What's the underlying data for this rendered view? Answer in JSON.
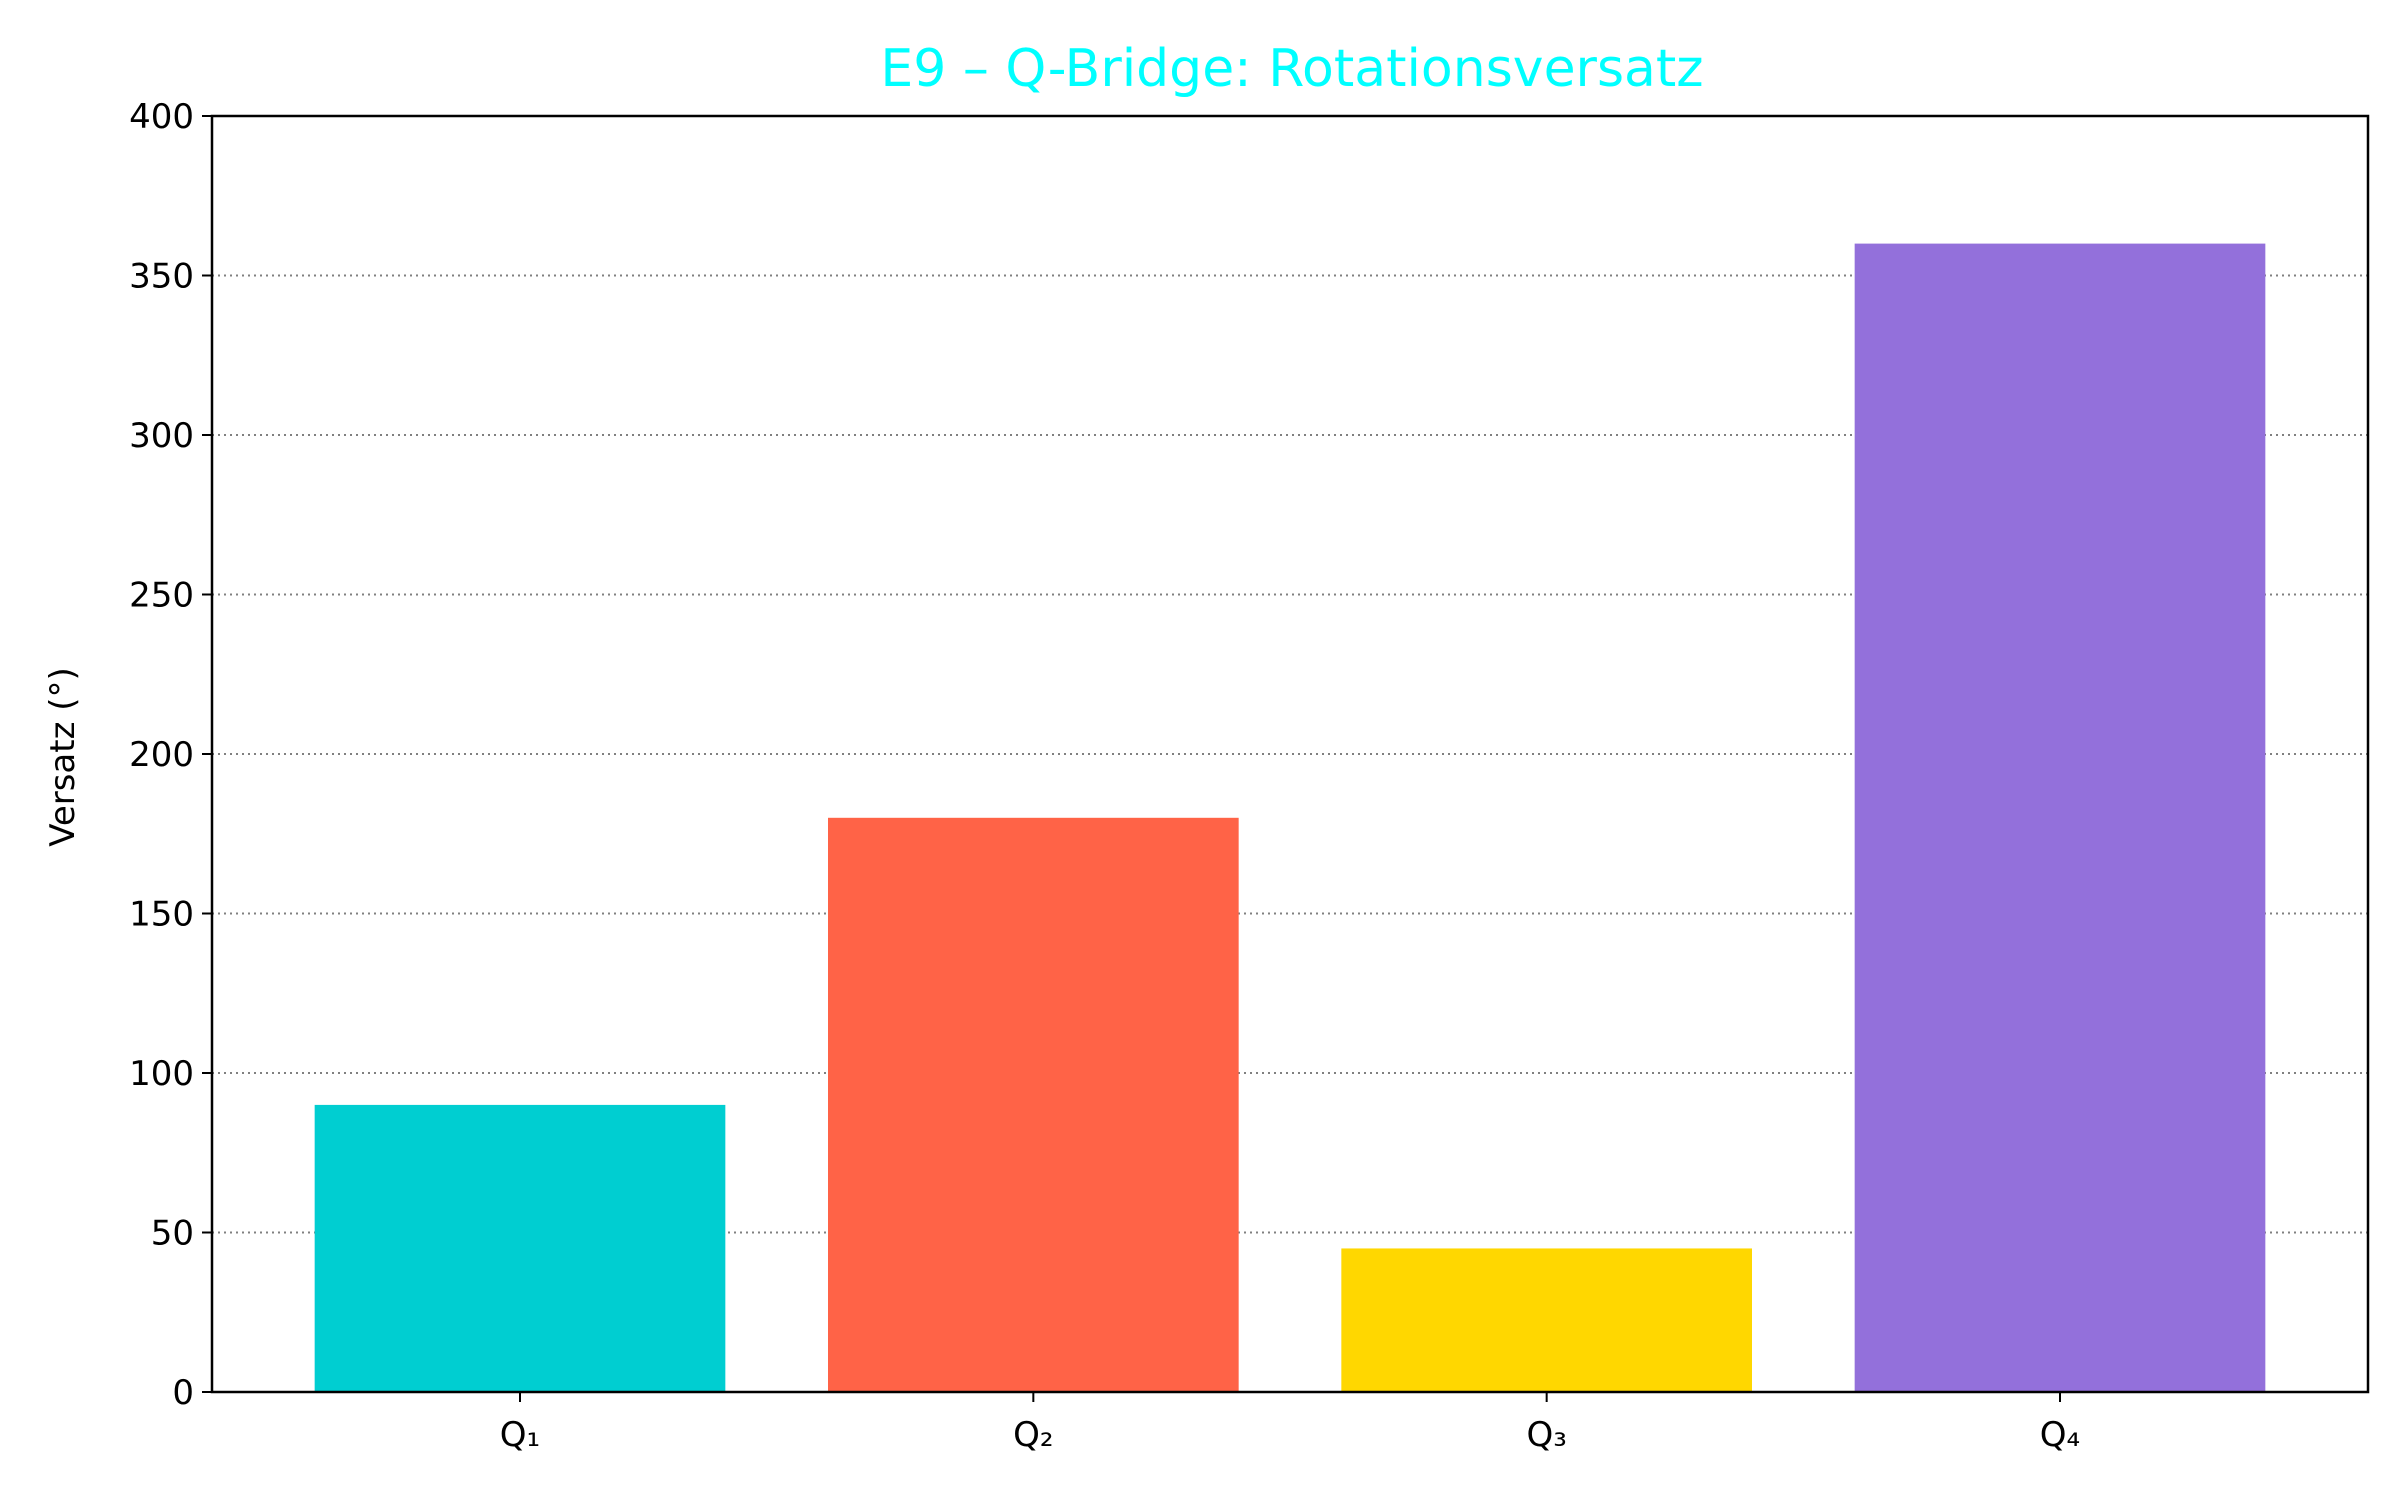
{
  "chart_data": {
    "type": "bar",
    "title": "E9 – Q-Bridge: Rotationsversatz",
    "xlabel": "",
    "ylabel": "Versatz (°)",
    "categories": [
      "Q₁",
      "Q₂",
      "Q₃",
      "Q₄"
    ],
    "values": [
      90,
      180,
      45,
      360
    ],
    "bar_colors": [
      "#00CED1",
      "#FF6347",
      "#FFD700",
      "#9370DB"
    ],
    "title_color": "#00FFFF",
    "ylim": [
      0,
      400
    ],
    "yticks": [
      0,
      50,
      100,
      150,
      200,
      250,
      300,
      350,
      400
    ],
    "grid": {
      "axis": "y",
      "style": "dotted",
      "color": "#808080"
    },
    "legend": "none"
  }
}
